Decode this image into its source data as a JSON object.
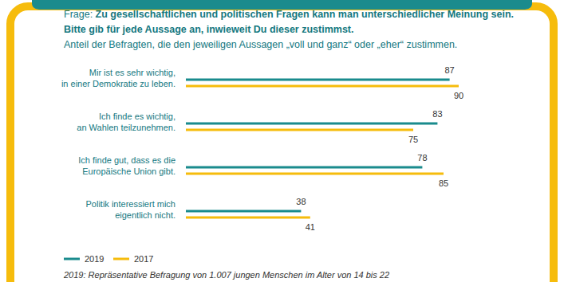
{
  "chart_data": {
    "type": "bar",
    "orientation": "horizontal",
    "question_label": "Frage:",
    "title": [
      "Zu gesellschaftlichen und politischen Fragen kann man unterschiedlicher Meinung sein.",
      "Bitte gib für jede Aussage an, inwieweit Du dieser zustimmst."
    ],
    "subtitle": "Anteil der Befragten, die den jeweiligen Aussagen „voll und ganz“ oder „eher“ zustimmen.",
    "categories": [
      "Mir ist es sehr wichtig,\nin einer Demokratie zu leben.",
      "Ich finde es wichtig,\nan Wahlen teilzunehmen.",
      "Ich finde gut, dass es die\nEuropäische Union gibt.",
      "Politik interessiert mich\neigentlich nicht."
    ],
    "series": [
      {
        "name": "2019",
        "color": "#1a8b8d",
        "values": [
          87,
          83,
          78,
          38
        ]
      },
      {
        "name": "2017",
        "color": "#f6bc0c",
        "values": [
          90,
          75,
          85,
          41
        ]
      }
    ],
    "xlim": [
      0,
      100
    ],
    "tick_labels": false,
    "grid": false,
    "data_labels": true,
    "legend": "bottom-left",
    "footnote": "2019: Repräsentative Befragung von 1.007 jungen Menschen im Alter von 14 bis 22"
  }
}
